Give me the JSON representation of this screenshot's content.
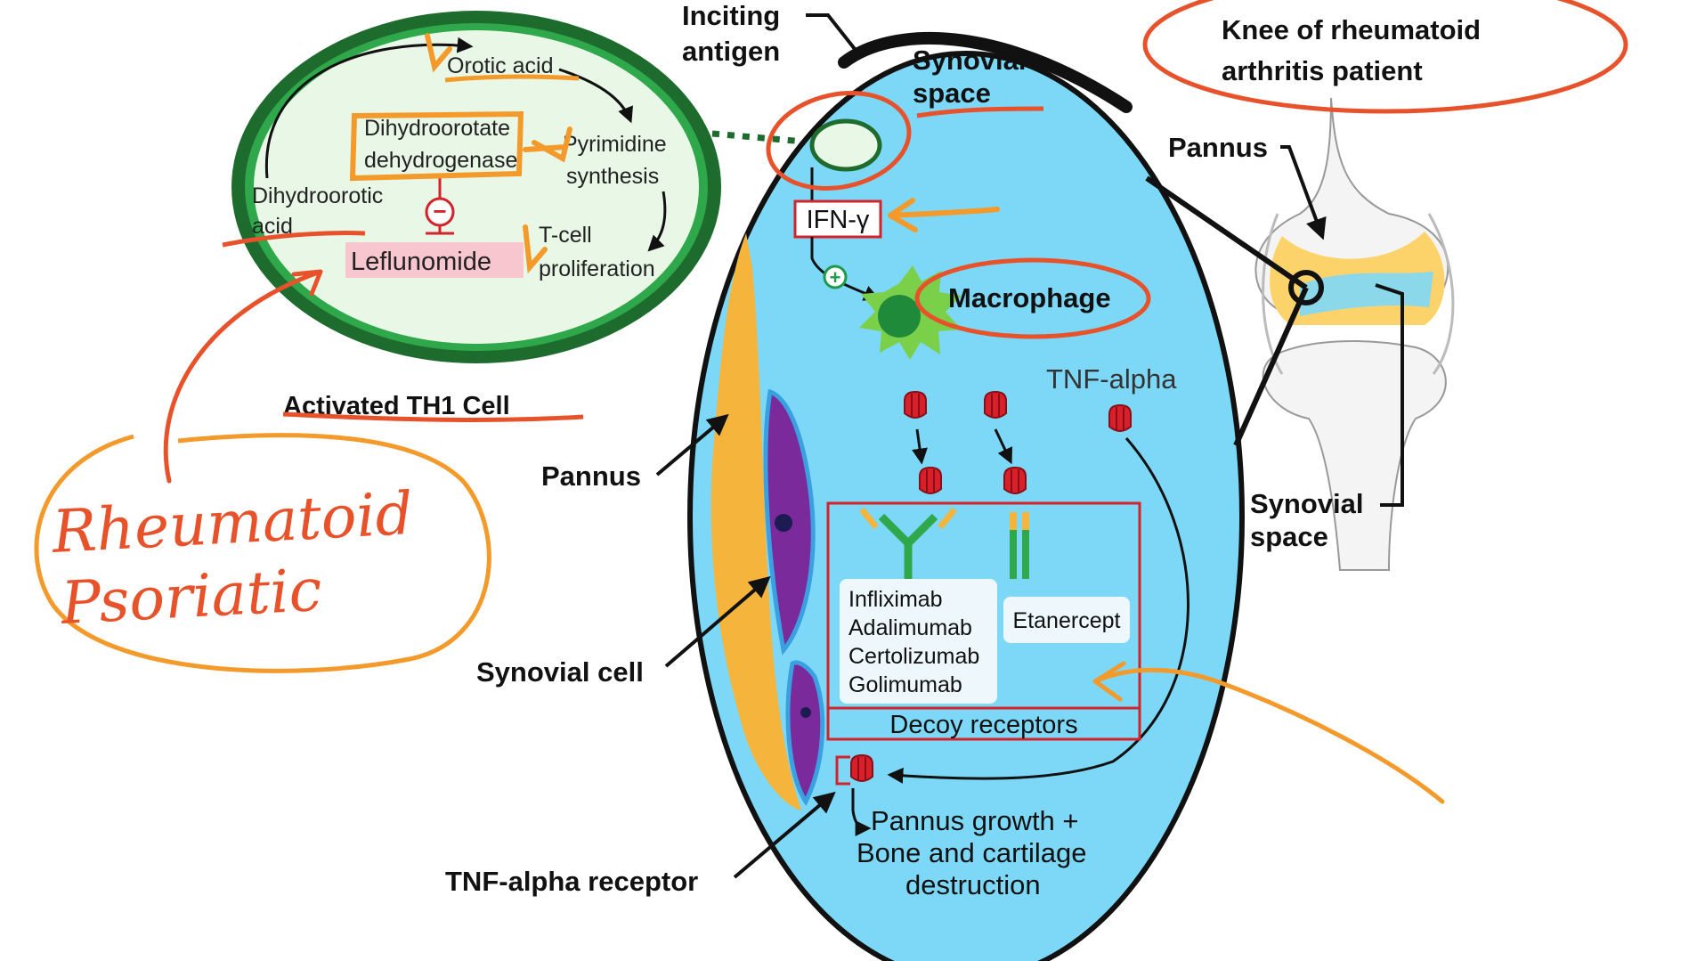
{
  "th1_cell": {
    "orotic_acid": "Orotic acid",
    "dhodh_line1": "Dihydroorotate",
    "dhodh_line2": "dehydrogenase",
    "pyrimidine_line1": "Pyrimidine",
    "pyrimidine_line2": "synthesis",
    "dihydroorotic_line1": "Dihydroorotic",
    "dihydroorotic_line2": "acid",
    "tcell_line1": "T-cell",
    "tcell_line2": "proliferation",
    "drug": "Leflunomide",
    "inhibit_symbol": "−",
    "caption": "Activated TH1 Cell"
  },
  "synovium": {
    "inciting_line1": "Inciting",
    "inciting_line2": "antigen",
    "space_line1": "Synovial",
    "space_line2": "space",
    "ifn": "IFN-γ",
    "plus_symbol": "+",
    "macrophage": "Macrophage",
    "tnf_alpha": "TNF-alpha",
    "antibodies": [
      "Infliximab",
      "Adalimumab",
      "Certolizumab",
      "Golimumab"
    ],
    "etanercept": "Etanercept",
    "decoy": "Decoy receptors",
    "outcome_line1": "Pannus growth +",
    "outcome_line2": "Bone and cartilage",
    "outcome_line3": "destruction"
  },
  "labels": {
    "pannus_left": "Pannus",
    "synovial_cell": "Synovial cell",
    "tnf_receptor": "TNF-alpha receptor"
  },
  "knee": {
    "title_line1": "Knee of rheumatoid",
    "title_line2": "arthritis patient",
    "pannus": "Pannus",
    "space_line1": "Synovial",
    "space_line2": "space"
  },
  "handwriting": {
    "line1": "Rheumatoid",
    "line2": "Psoriatic"
  },
  "colors": {
    "synovium_fill": "#7dd8f8",
    "cell_outer": "#1e6b2e",
    "cell_inner": "#e9f8e6",
    "annotation": "#e8522a",
    "orange_marker": "#f39a2b",
    "pannus": "#f5b43c",
    "synovial_cell": "#7a2a9a",
    "box_red": "#d2232a"
  }
}
